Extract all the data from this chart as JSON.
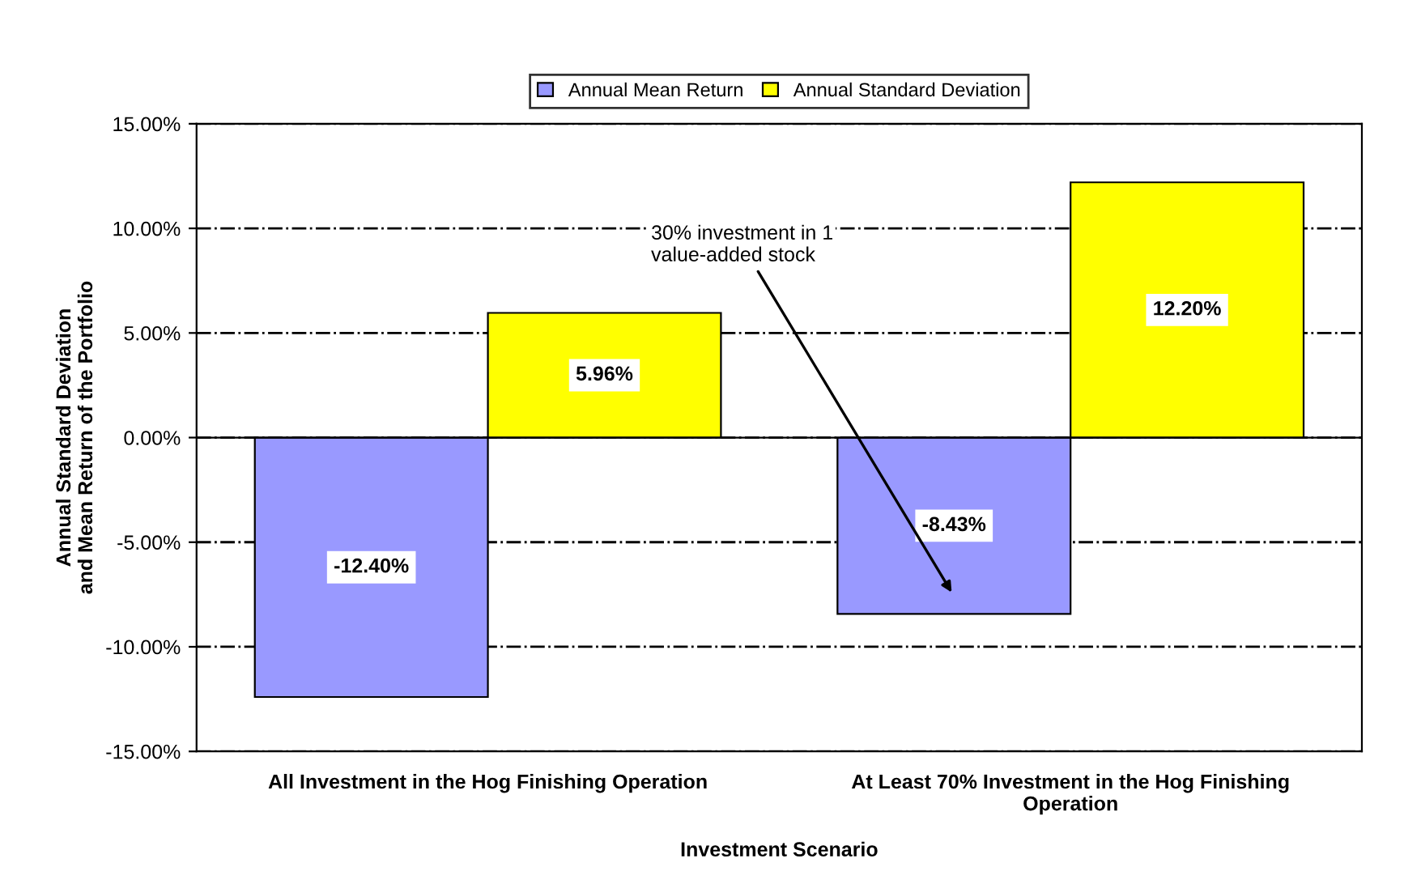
{
  "chart_data": {
    "type": "bar",
    "xlabel": "Investment Scenario",
    "ylabel": "Annual Standard Deviation\nand Mean Return of the Portfolio",
    "categories": [
      "All Investment in the Hog Finishing Operation",
      "At Least 70% Investment in the Hog Finishing\nOperation"
    ],
    "series": [
      {
        "name": "Annual Mean Return",
        "color": "#9999ff",
        "values": [
          -12.4,
          -8.43
        ],
        "value_labels": [
          "-12.40%",
          "-8.43%"
        ]
      },
      {
        "name": "Annual Standard Deviation",
        "color": "#ffff00",
        "values": [
          5.96,
          12.2
        ],
        "value_labels": [
          "5.96%",
          "12.20%"
        ]
      }
    ],
    "ylim": [
      -15,
      15
    ],
    "yticks": [
      {
        "value": 15,
        "label": "15.00%"
      },
      {
        "value": 10,
        "label": "10.00%"
      },
      {
        "value": 5,
        "label": "5.00%"
      },
      {
        "value": 0,
        "label": "0.00%"
      },
      {
        "value": -5,
        "label": "-5.00%"
      },
      {
        "value": -10,
        "label": "-10.00%"
      },
      {
        "value": -15,
        "label": "-15.00%"
      }
    ],
    "grid": "y",
    "legend": "top",
    "annotations": [
      "30% investment in 1\nvalue-added stock"
    ]
  }
}
